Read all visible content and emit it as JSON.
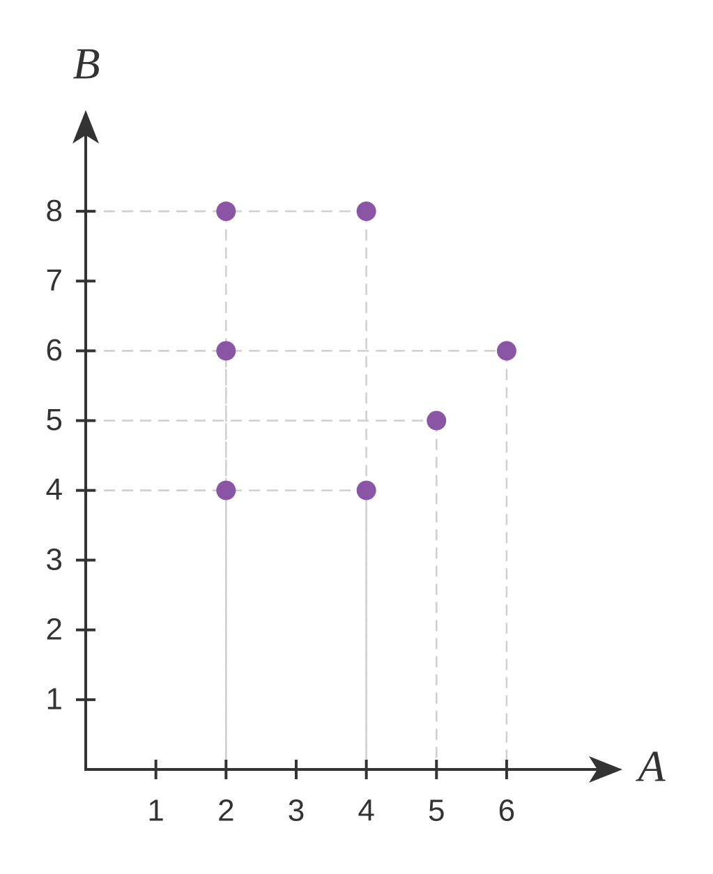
{
  "chart_data": {
    "type": "scatter",
    "x_label": "A",
    "y_label": "B",
    "x": [
      2,
      4,
      2,
      6,
      5,
      2,
      4
    ],
    "values": [
      8,
      8,
      6,
      6,
      5,
      4,
      4
    ],
    "color": "#8b55a5",
    "xlim": [
      0,
      7.65
    ],
    "ylim": [
      0,
      9.45
    ],
    "xticks": [
      1,
      2,
      3,
      4,
      5,
      6
    ],
    "yticks": [
      1,
      2,
      3,
      4,
      5,
      6,
      7,
      8
    ],
    "guides": true
  }
}
